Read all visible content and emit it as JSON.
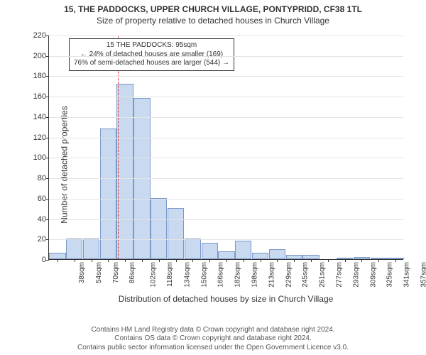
{
  "title": "15, THE PADDOCKS, UPPER CHURCH VILLAGE, PONTYPRIDD, CF38 1TL",
  "subtitle": "Size of property relative to detached houses in Church Village",
  "ylabel": "Number of detached properties",
  "xlabel": "Distribution of detached houses by size in Church Village",
  "chart": {
    "type": "histogram",
    "bar_fill": "#c8d9f0",
    "bar_border": "#7a98c9",
    "grid_color": "#e4e4e4",
    "background": "#ffffff",
    "ylim": [
      0,
      220
    ],
    "ytick_step": 20,
    "x_categories": [
      "38sqm",
      "54sqm",
      "70sqm",
      "86sqm",
      "102sqm",
      "118sqm",
      "134sqm",
      "150sqm",
      "166sqm",
      "182sqm",
      "198sqm",
      "213sqm",
      "229sqm",
      "245sqm",
      "261sqm",
      "277sqm",
      "293sqm",
      "309sqm",
      "325sqm",
      "341sqm",
      "357sqm"
    ],
    "values": [
      6,
      20,
      20,
      128,
      172,
      158,
      60,
      50,
      20,
      16,
      8,
      18,
      6,
      10,
      4,
      4,
      0,
      1,
      2,
      1,
      1
    ],
    "title_fontsize": 12,
    "label_fontsize": 12,
    "tick_fontsize": 11
  },
  "reference": {
    "size_sqm": 95,
    "pct_smaller": 24,
    "count_smaller": 169,
    "pct_larger_semi": 76,
    "count_larger_semi": 544,
    "line_color": "#e03030",
    "line1": "15 THE PADDOCKS: 95sqm",
    "line2": "← 24% of detached houses are smaller (169)",
    "line3": "76% of semi-detached houses are larger (544) →"
  },
  "footer": {
    "line1": "Contains HM Land Registry data © Crown copyright and database right 2024.",
    "line2": "Contains OS data © Crown copyright and database right 2024.",
    "line3": "Contains public sector information licensed under the Open Government Licence v3.0."
  }
}
